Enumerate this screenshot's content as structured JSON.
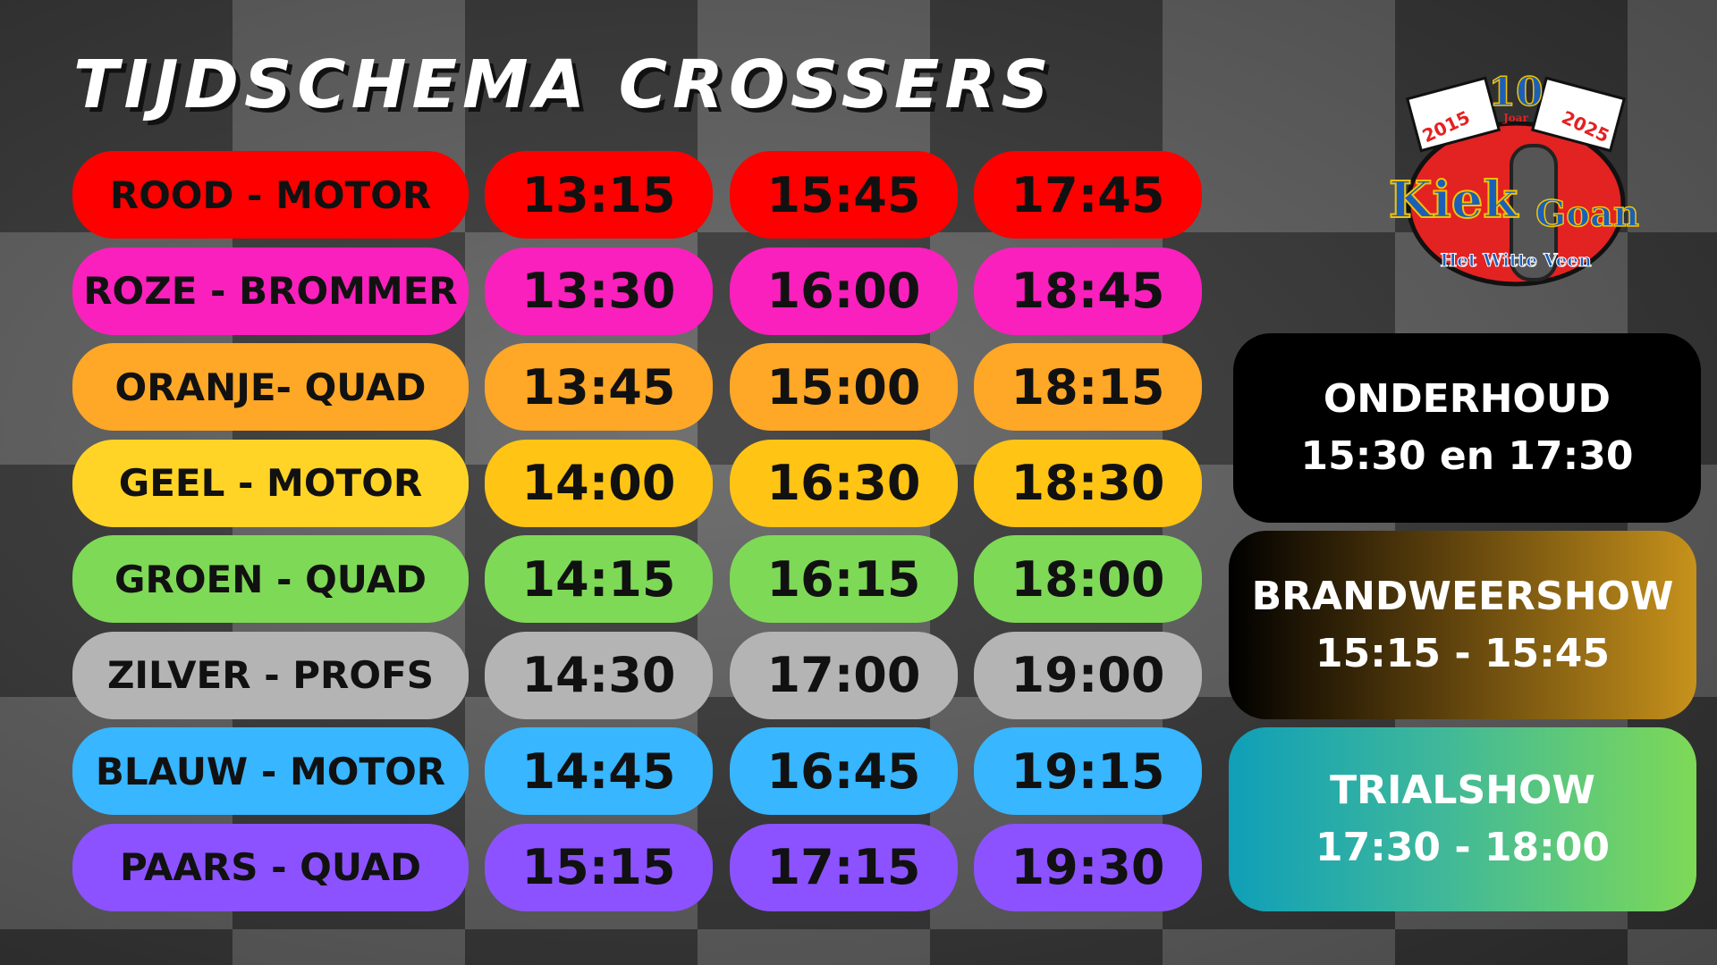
{
  "title": "TIJDSCHEMA CROSSERS",
  "logo": {
    "text": "Kiek'm Goan",
    "years": "10",
    "joar": "Joar",
    "year_start": "2015",
    "year_end": "2025",
    "place": "Het Witte Veen"
  },
  "rows": [
    {
      "label": "ROOD - MOTOR",
      "times": [
        "13:15",
        "15:45",
        "17:45"
      ],
      "label_color": "#ff0000",
      "time_color": "#ff0000"
    },
    {
      "label": "ROZE - BROMMER",
      "times": [
        "13:30",
        "16:00",
        "18:45"
      ],
      "label_color": "#fa20bd",
      "time_color": "#fa20bd"
    },
    {
      "label": "ORANJE- QUAD",
      "times": [
        "13:45",
        "15:00",
        "18:15"
      ],
      "label_color": "#ffa726",
      "time_color": "#ffa726"
    },
    {
      "label": "GEEL - MOTOR",
      "times": [
        "14:00",
        "16:30",
        "18:30"
      ],
      "label_color": "#ffd426",
      "time_color": "#ffc414"
    },
    {
      "label": "GROEN - QUAD",
      "times": [
        "14:15",
        "16:15",
        "18:00"
      ],
      "label_color": "#7ed957",
      "time_color": "#7ed957"
    },
    {
      "label": "ZILVER - PROFS",
      "times": [
        "14:30",
        "17:00",
        "19:00"
      ],
      "label_color": "#b4b4b4",
      "time_color": "#b4b4b4"
    },
    {
      "label": "BLAUW - MOTOR",
      "times": [
        "14:45",
        "16:45",
        "19:15"
      ],
      "label_color": "#38b6ff",
      "time_color": "#38b6ff"
    },
    {
      "label": "PAARS - QUAD",
      "times": [
        "15:15",
        "17:15",
        "19:30"
      ],
      "label_color": "#8c52ff",
      "time_color": "#8c52ff"
    }
  ],
  "events": [
    {
      "title": "ONDERHOUD",
      "time": "15:30 en 17:30"
    },
    {
      "title": "BRANDWEERSHOW",
      "time": "15:15 - 15:45"
    },
    {
      "title": "TRIALSHOW",
      "time": "17:30 - 18:00"
    }
  ]
}
